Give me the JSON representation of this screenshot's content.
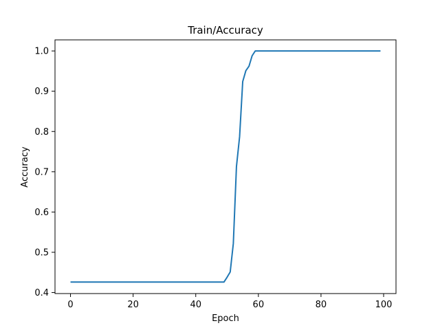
{
  "chart_data": {
    "type": "line",
    "title": "Train/Accuracy",
    "xlabel": "Epoch",
    "ylabel": "Accuracy",
    "xlim": [
      -4.95,
      103.95
    ],
    "ylim": [
      0.3975,
      1.0275
    ],
    "xticks": [
      0,
      20,
      40,
      60,
      80,
      100
    ],
    "yticks": [
      0.4,
      0.5,
      0.6,
      0.7,
      0.8,
      0.9,
      1.0
    ],
    "grid": false,
    "series": [
      {
        "color": "#1f77b4",
        "x": [
          0,
          1,
          2,
          3,
          4,
          5,
          6,
          7,
          8,
          9,
          10,
          11,
          12,
          13,
          14,
          15,
          16,
          17,
          18,
          19,
          20,
          21,
          22,
          23,
          24,
          25,
          26,
          27,
          28,
          29,
          30,
          31,
          32,
          33,
          34,
          35,
          36,
          37,
          38,
          39,
          40,
          41,
          42,
          43,
          44,
          45,
          46,
          47,
          48,
          49,
          50,
          51,
          52,
          53,
          54,
          55,
          56,
          57,
          58,
          59,
          60,
          61,
          62,
          63,
          64,
          65,
          66,
          67,
          68,
          69,
          70,
          71,
          72,
          73,
          74,
          75,
          76,
          77,
          78,
          79,
          80,
          81,
          82,
          83,
          84,
          85,
          86,
          87,
          88,
          89,
          90,
          91,
          92,
          93,
          94,
          95,
          96,
          97,
          98,
          99
        ],
        "y": [
          0.426,
          0.426,
          0.426,
          0.426,
          0.426,
          0.426,
          0.426,
          0.426,
          0.426,
          0.426,
          0.426,
          0.426,
          0.426,
          0.426,
          0.426,
          0.426,
          0.426,
          0.426,
          0.426,
          0.426,
          0.426,
          0.426,
          0.426,
          0.426,
          0.426,
          0.426,
          0.426,
          0.426,
          0.426,
          0.426,
          0.426,
          0.426,
          0.426,
          0.426,
          0.426,
          0.426,
          0.426,
          0.426,
          0.426,
          0.426,
          0.426,
          0.426,
          0.426,
          0.426,
          0.426,
          0.426,
          0.426,
          0.426,
          0.426,
          0.426,
          0.438,
          0.451,
          0.522,
          0.713,
          0.787,
          0.924,
          0.951,
          0.962,
          0.988,
          1.0,
          1.0,
          1.0,
          1.0,
          1.0,
          1.0,
          1.0,
          1.0,
          1.0,
          1.0,
          1.0,
          1.0,
          1.0,
          1.0,
          1.0,
          1.0,
          1.0,
          1.0,
          1.0,
          1.0,
          1.0,
          1.0,
          1.0,
          1.0,
          1.0,
          1.0,
          1.0,
          1.0,
          1.0,
          1.0,
          1.0,
          1.0,
          1.0,
          1.0,
          1.0,
          1.0,
          1.0,
          1.0,
          1.0,
          1.0,
          1.0
        ]
      }
    ]
  }
}
